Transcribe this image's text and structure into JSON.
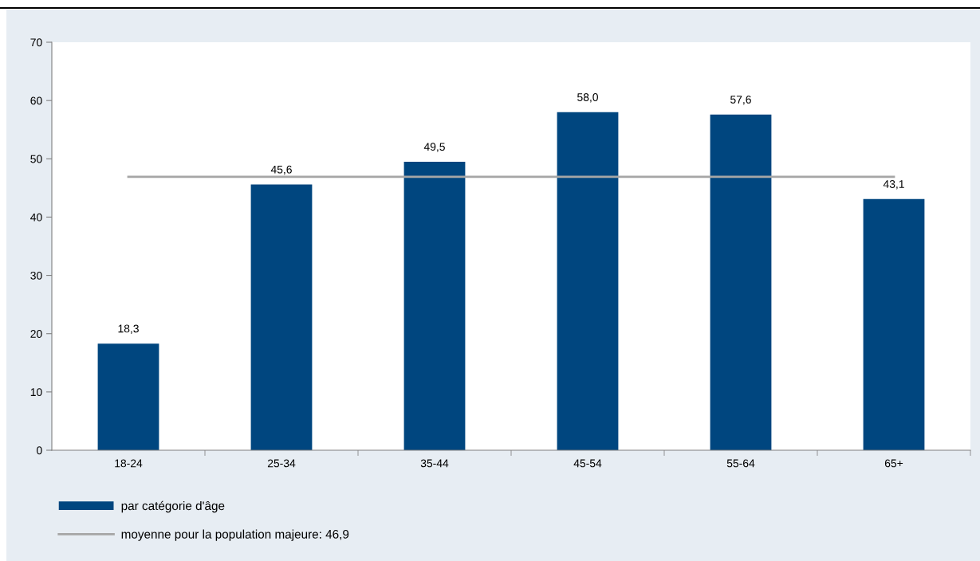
{
  "chart_data": {
    "type": "bar",
    "categories": [
      "18-24",
      "25-34",
      "35-44",
      "45-54",
      "55-64",
      "65+"
    ],
    "series": [
      {
        "name": "par catégorie d'âge",
        "color": "#00467f",
        "values": [
          18.3,
          45.6,
          49.5,
          58.0,
          57.6,
          43.1
        ],
        "value_labels": [
          "18,3",
          "45,6",
          "49,5",
          "58,0",
          "57,6",
          "43,1"
        ]
      },
      {
        "name": "moyenne pour la population majeure: 46,9",
        "type": "line",
        "color": "#a6a6a6",
        "values": [
          46.9,
          46.9,
          46.9,
          46.9,
          46.9,
          46.9
        ]
      }
    ],
    "ylim": [
      0,
      70
    ],
    "yticks": [
      0,
      10,
      20,
      30,
      40,
      50,
      60,
      70
    ],
    "grid": false,
    "legend": "bottom left",
    "marker": "none",
    "line_style": "solid"
  }
}
